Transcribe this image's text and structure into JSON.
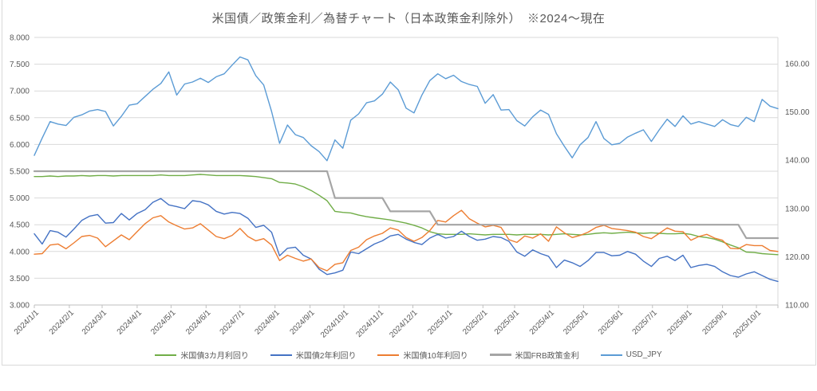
{
  "title": "米国債／政策金利／為替チャート（日本政策金利除外）　※2024～現在",
  "legend": {
    "items": [
      {
        "label": "米国債3カ月利回り",
        "color": "#70AD47"
      },
      {
        "label": "米国債2年利回り",
        "color": "#4472C4"
      },
      {
        "label": "米国債10年利回り",
        "color": "#ED7D31"
      },
      {
        "label": "米国FRB政策金利",
        "color": "#A5A5A5"
      },
      {
        "label": "USD_JPY",
        "color": "#5B9BD5"
      }
    ]
  },
  "chart_data": {
    "type": "line",
    "title": "米国債／政策金利／為替チャート（日本政策金利除外）　※2024～現在",
    "grid": true,
    "legend_position": "bottom",
    "left_axis": {
      "min": 3.0,
      "max": 8.0,
      "step": 0.5,
      "tick_labels": [
        "8.000",
        "7.500",
        "7.000",
        "6.500",
        "6.000",
        "5.500",
        "5.000",
        "4.500",
        "4.000",
        "3.500",
        "3.000"
      ]
    },
    "right_axis": {
      "min": 110,
      "max": 160,
      "step": 10,
      "tick_labels": [
        "160.00",
        "150.00",
        "140.00",
        "130.00",
        "120.00",
        "110.00"
      ]
    },
    "x_axis": {
      "start_date": "2024/1/1",
      "interval_days": 7,
      "tick_labels": [
        "2024/1/1",
        "2024/2/1",
        "2024/3/1",
        "2024/4/1",
        "2024/5/1",
        "2024/6/1",
        "2024/7/1",
        "2024/8/1",
        "2024/9/1",
        "2024/10/1",
        "2024/11/1",
        "2024/12/1",
        "2025/1/1",
        "2025/2/1",
        "2025/3/1",
        "2025/4/1",
        "2025/5/1",
        "2025/6/1",
        "2025/7/1",
        "2025/8/1",
        "2025/9/1",
        "2025/10/1"
      ]
    },
    "series": [
      {
        "name": "米国債3カ月利回り",
        "axis": "left",
        "color": "#70AD47",
        "width": 1.4,
        "values": [
          5.4,
          5.4,
          5.41,
          5.4,
          5.41,
          5.41,
          5.42,
          5.41,
          5.42,
          5.42,
          5.41,
          5.42,
          5.42,
          5.42,
          5.42,
          5.42,
          5.43,
          5.42,
          5.42,
          5.42,
          5.43,
          5.44,
          5.43,
          5.42,
          5.42,
          5.42,
          5.42,
          5.41,
          5.4,
          5.38,
          5.36,
          5.29,
          5.28,
          5.26,
          5.21,
          5.14,
          5.05,
          4.95,
          4.75,
          4.73,
          4.72,
          4.68,
          4.65,
          4.63,
          4.61,
          4.59,
          4.56,
          4.53,
          4.49,
          4.44,
          4.37,
          4.33,
          4.32,
          4.32,
          4.32,
          4.33,
          4.32,
          4.31,
          4.32,
          4.32,
          4.32,
          4.31,
          4.32,
          4.32,
          4.32,
          4.31,
          4.32,
          4.33,
          4.32,
          4.31,
          4.32,
          4.34,
          4.35,
          4.34,
          4.35,
          4.36,
          4.35,
          4.34,
          4.35,
          4.34,
          4.33,
          4.33,
          4.34,
          4.32,
          4.28,
          4.26,
          4.23,
          4.18,
          4.12,
          4.07,
          3.99,
          3.98,
          3.96,
          3.95,
          3.94
        ]
      },
      {
        "name": "米国債2年利回り",
        "axis": "left",
        "color": "#4472C4",
        "width": 1.4,
        "values": [
          4.33,
          4.14,
          4.39,
          4.36,
          4.27,
          4.42,
          4.58,
          4.66,
          4.69,
          4.53,
          4.54,
          4.71,
          4.59,
          4.71,
          4.78,
          4.92,
          4.99,
          4.87,
          4.84,
          4.8,
          4.95,
          4.93,
          4.87,
          4.75,
          4.7,
          4.73,
          4.71,
          4.62,
          4.45,
          4.49,
          4.36,
          3.92,
          4.06,
          4.08,
          3.93,
          3.86,
          3.67,
          3.57,
          3.6,
          3.65,
          3.99,
          3.96,
          4.05,
          4.14,
          4.2,
          4.29,
          4.32,
          4.23,
          4.17,
          4.13,
          4.25,
          4.32,
          4.25,
          4.28,
          4.38,
          4.28,
          4.21,
          4.23,
          4.28,
          4.26,
          4.19,
          3.99,
          3.91,
          4.03,
          3.96,
          3.91,
          3.7,
          3.84,
          3.79,
          3.72,
          3.83,
          3.98,
          3.98,
          3.92,
          3.93,
          4.0,
          3.95,
          3.82,
          3.72,
          3.87,
          3.91,
          3.83,
          3.93,
          3.7,
          3.74,
          3.76,
          3.72,
          3.62,
          3.55,
          3.52,
          3.58,
          3.62,
          3.55,
          3.48,
          3.44
        ]
      },
      {
        "name": "米国債10年利回り",
        "axis": "left",
        "color": "#ED7D31",
        "width": 1.4,
        "values": [
          3.95,
          3.96,
          4.12,
          4.14,
          4.05,
          4.16,
          4.28,
          4.3,
          4.25,
          4.09,
          4.2,
          4.31,
          4.22,
          4.37,
          4.52,
          4.63,
          4.67,
          4.55,
          4.48,
          4.42,
          4.44,
          4.52,
          4.4,
          4.28,
          4.24,
          4.3,
          4.43,
          4.28,
          4.2,
          4.24,
          4.12,
          3.83,
          3.93,
          3.87,
          3.82,
          3.86,
          3.7,
          3.64,
          3.76,
          3.79,
          4.02,
          4.08,
          4.22,
          4.29,
          4.34,
          4.44,
          4.4,
          4.26,
          4.19,
          4.26,
          4.39,
          4.58,
          4.55,
          4.67,
          4.77,
          4.61,
          4.53,
          4.46,
          4.49,
          4.45,
          4.22,
          4.17,
          4.29,
          4.25,
          4.33,
          4.19,
          4.46,
          4.35,
          4.26,
          4.3,
          4.36,
          4.45,
          4.49,
          4.43,
          4.41,
          4.39,
          4.36,
          4.28,
          4.24,
          4.34,
          4.44,
          4.38,
          4.37,
          4.21,
          4.28,
          4.32,
          4.25,
          4.21,
          4.06,
          4.05,
          4.13,
          4.11,
          4.11,
          4.02,
          4.0
        ]
      },
      {
        "name": "米国FRB政策金利",
        "axis": "left",
        "color": "#A5A5A5",
        "width": 2.2,
        "values": [
          5.5,
          5.5,
          5.5,
          5.5,
          5.5,
          5.5,
          5.5,
          5.5,
          5.5,
          5.5,
          5.5,
          5.5,
          5.5,
          5.5,
          5.5,
          5.5,
          5.5,
          5.5,
          5.5,
          5.5,
          5.5,
          5.5,
          5.5,
          5.5,
          5.5,
          5.5,
          5.5,
          5.5,
          5.5,
          5.5,
          5.5,
          5.5,
          5.5,
          5.5,
          5.5,
          5.5,
          5.5,
          5.5,
          5.0,
          5.0,
          5.0,
          5.0,
          5.0,
          5.0,
          5.0,
          4.75,
          4.75,
          4.75,
          4.75,
          4.75,
          4.75,
          4.5,
          4.5,
          4.5,
          4.5,
          4.5,
          4.5,
          4.5,
          4.5,
          4.5,
          4.5,
          4.5,
          4.5,
          4.5,
          4.5,
          4.5,
          4.5,
          4.5,
          4.5,
          4.5,
          4.5,
          4.5,
          4.5,
          4.5,
          4.5,
          4.5,
          4.5,
          4.5,
          4.5,
          4.5,
          4.5,
          4.5,
          4.5,
          4.5,
          4.5,
          4.5,
          4.5,
          4.5,
          4.5,
          4.5,
          4.25,
          4.25,
          4.25,
          4.25,
          4.25
        ]
      },
      {
        "name": "USD_JPY",
        "axis": "right",
        "color": "#5B9BD5",
        "width": 1.4,
        "values": [
          141.0,
          144.6,
          148.0,
          147.5,
          147.2,
          148.9,
          149.4,
          150.2,
          150.5,
          150.1,
          147.1,
          149.1,
          151.4,
          151.7,
          153.2,
          154.7,
          155.9,
          158.3,
          153.5,
          155.8,
          156.2,
          157.0,
          156.1,
          157.3,
          157.9,
          159.7,
          161.4,
          160.8,
          157.5,
          155.6,
          150.1,
          143.5,
          147.3,
          145.3,
          144.7,
          143.0,
          141.8,
          139.9,
          144.2,
          142.5,
          148.3,
          149.6,
          151.9,
          152.3,
          153.7,
          156.2,
          154.6,
          150.8,
          149.8,
          153.5,
          156.5,
          157.9,
          156.9,
          157.6,
          156.3,
          155.7,
          155.3,
          151.8,
          153.6,
          150.4,
          150.5,
          148.2,
          147.1,
          149.0,
          150.4,
          149.5,
          145.5,
          142.9,
          140.5,
          143.2,
          144.7,
          148.0,
          144.5,
          143.2,
          143.5,
          144.8,
          145.6,
          146.3,
          143.9,
          146.3,
          148.5,
          147.0,
          149.2,
          147.5,
          148.0,
          147.5,
          147.0,
          148.4,
          147.4,
          147.0,
          148.9,
          148.0,
          152.6,
          151.2,
          150.7
        ]
      }
    ]
  }
}
